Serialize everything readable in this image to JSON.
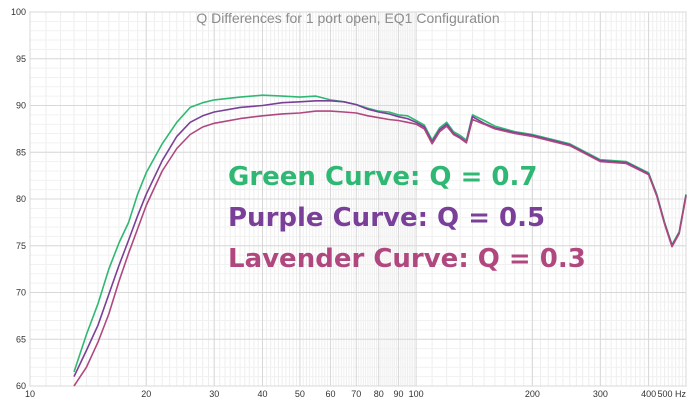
{
  "chart_data": {
    "type": "line",
    "title": "Q Differences for 1 port open, EQ1 Configuration",
    "x_scale": "log",
    "xlim": [
      10,
      500
    ],
    "ylim": [
      60,
      100
    ],
    "x_ticks": [
      {
        "value": 10,
        "label": "10"
      },
      {
        "value": 20,
        "label": "20"
      },
      {
        "value": 30,
        "label": "30"
      },
      {
        "value": 40,
        "label": "40"
      },
      {
        "value": 50,
        "label": "50"
      },
      {
        "value": 60,
        "label": "60"
      },
      {
        "value": 70,
        "label": "70"
      },
      {
        "value": 80,
        "label": "80"
      },
      {
        "value": 90,
        "label": "90"
      },
      {
        "value": 100,
        "label": "100"
      },
      {
        "value": 200,
        "label": "200"
      },
      {
        "value": 300,
        "label": "300"
      },
      {
        "value": 400,
        "label": "400"
      },
      {
        "value": 500,
        "label": "500 Hz"
      }
    ],
    "y_ticks": [
      {
        "value": 60,
        "label": "60"
      },
      {
        "value": 65,
        "label": "65"
      },
      {
        "value": 70,
        "label": "70"
      },
      {
        "value": 75,
        "label": "75"
      },
      {
        "value": 80,
        "label": "80"
      },
      {
        "value": 85,
        "label": "85"
      },
      {
        "value": 90,
        "label": "90"
      },
      {
        "value": 95,
        "label": "95"
      },
      {
        "value": 100,
        "label": "100"
      }
    ],
    "grid": true,
    "series": [
      {
        "color": "#2fb873",
        "x": [
          13,
          14,
          15,
          16,
          17,
          18,
          19,
          20,
          22,
          24,
          26,
          28,
          30,
          35,
          40,
          45,
          50,
          55,
          60,
          65,
          70,
          75,
          80,
          85,
          90,
          95,
          100,
          105,
          110,
          115,
          120,
          125,
          130,
          135,
          140,
          150,
          160,
          180,
          200,
          250,
          300,
          350,
          400,
          420,
          440,
          460,
          480,
          500
        ],
        "y": [
          61.5,
          65.5,
          68.8,
          72.5,
          75.3,
          77.5,
          80.5,
          82.8,
          85.9,
          88.2,
          89.8,
          90.3,
          90.6,
          90.9,
          91.1,
          91.0,
          90.9,
          91.0,
          90.6,
          90.4,
          90.1,
          89.7,
          89.4,
          89.3,
          89.0,
          88.9,
          88.4,
          87.9,
          86.3,
          87.6,
          88.2,
          87.2,
          86.8,
          86.3,
          89.0,
          88.4,
          87.8,
          87.2,
          86.9,
          85.9,
          84.2,
          84.0,
          82.8,
          80.5,
          77.5,
          75.1,
          76.5,
          80.5
        ]
      },
      {
        "color": "#7a3f98",
        "x": [
          13,
          14,
          15,
          16,
          17,
          18,
          19,
          20,
          22,
          24,
          26,
          28,
          30,
          35,
          40,
          45,
          50,
          55,
          60,
          65,
          70,
          75,
          80,
          85,
          90,
          95,
          100,
          105,
          110,
          115,
          120,
          125,
          130,
          135,
          140,
          150,
          160,
          180,
          200,
          250,
          300,
          350,
          400,
          420,
          440,
          460,
          480,
          500
        ],
        "y": [
          61.0,
          63.8,
          66.5,
          69.8,
          72.9,
          75.6,
          78.2,
          80.5,
          84.1,
          86.7,
          88.2,
          88.9,
          89.3,
          89.8,
          90.0,
          90.3,
          90.4,
          90.5,
          90.5,
          90.4,
          90.1,
          89.6,
          89.3,
          89.1,
          88.8,
          88.6,
          88.2,
          87.7,
          86.1,
          87.4,
          88.0,
          87.0,
          86.6,
          86.1,
          88.8,
          88.1,
          87.6,
          87.1,
          86.8,
          85.8,
          84.1,
          83.9,
          82.7,
          80.4,
          77.4,
          75.0,
          76.4,
          80.4
        ]
      },
      {
        "color": "#b0487f",
        "x": [
          13,
          14,
          15,
          16,
          17,
          18,
          19,
          20,
          22,
          24,
          26,
          28,
          30,
          35,
          40,
          45,
          50,
          55,
          60,
          65,
          70,
          75,
          80,
          85,
          90,
          95,
          100,
          105,
          110,
          115,
          120,
          125,
          130,
          135,
          140,
          150,
          160,
          180,
          200,
          250,
          300,
          350,
          400,
          420,
          440,
          460,
          480,
          500
        ],
        "y": [
          60.0,
          62.0,
          64.7,
          67.7,
          71.2,
          74.2,
          76.8,
          79.3,
          83.0,
          85.4,
          86.9,
          87.7,
          88.1,
          88.6,
          88.9,
          89.1,
          89.2,
          89.4,
          89.4,
          89.3,
          89.2,
          88.9,
          88.7,
          88.5,
          88.4,
          88.2,
          88.0,
          87.5,
          85.9,
          87.2,
          87.8,
          86.9,
          86.5,
          86.0,
          88.5,
          88.0,
          87.5,
          87.0,
          86.7,
          85.7,
          84.0,
          83.8,
          82.6,
          80.3,
          77.3,
          74.9,
          76.3,
          80.3
        ]
      }
    ],
    "annotations": [
      {
        "text": "Green Curve: Q = 0.7",
        "color": "#2fb873"
      },
      {
        "text": "Purple Curve: Q = 0.5",
        "color": "#7a3f98"
      },
      {
        "text": "Lavender Curve: Q = 0.3",
        "color": "#b0487f"
      }
    ]
  }
}
